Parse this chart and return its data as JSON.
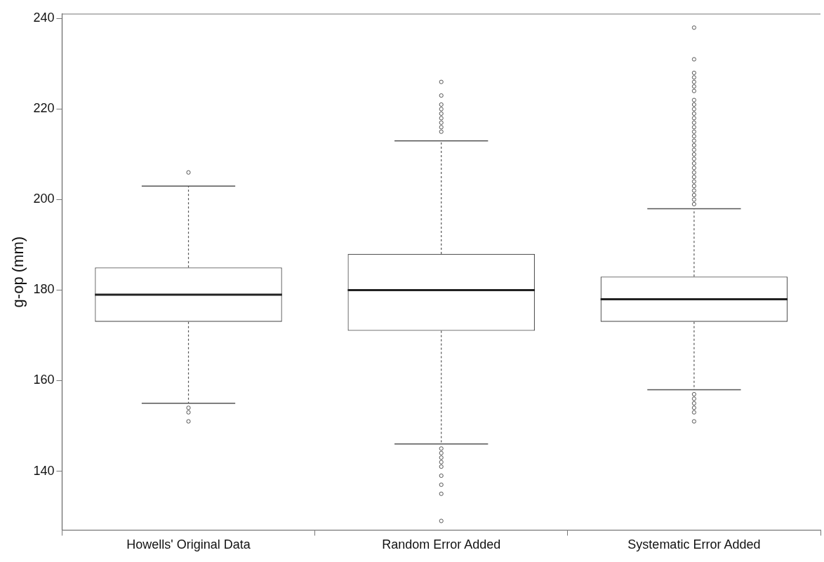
{
  "chart_data": {
    "type": "box",
    "ylabel": "g-op (mm)",
    "categories": [
      "Howells' Original Data",
      "Random Error Added",
      "Systematic Error Added"
    ],
    "color": "#555555",
    "boxes": [
      {
        "low": 155,
        "q1": 173,
        "median": 179,
        "q3": 185,
        "high": 203,
        "outliers": [
          206,
          154,
          153,
          151
        ]
      },
      {
        "low": 146,
        "q1": 171,
        "median": 180,
        "q3": 188,
        "high": 213,
        "outliers": [
          226,
          223,
          221,
          220,
          219,
          218,
          217,
          216,
          215,
          145,
          144,
          143,
          142,
          141,
          139,
          137,
          135,
          129
        ]
      },
      {
        "low": 158,
        "q1": 173,
        "median": 178,
        "q3": 183,
        "high": 198,
        "outliers": [
          238,
          231,
          228,
          227,
          226,
          225,
          224,
          222,
          221,
          220,
          219,
          218,
          217,
          216,
          215,
          214,
          213,
          212,
          211,
          210,
          209,
          208,
          207,
          206,
          205,
          204,
          203,
          202,
          201,
          200,
          199,
          157,
          156,
          155,
          154,
          153,
          151
        ]
      }
    ],
    "ylim": [
      127,
      241
    ],
    "yticks": [
      140,
      160,
      180,
      200,
      220,
      240
    ],
    "grid": false
  }
}
